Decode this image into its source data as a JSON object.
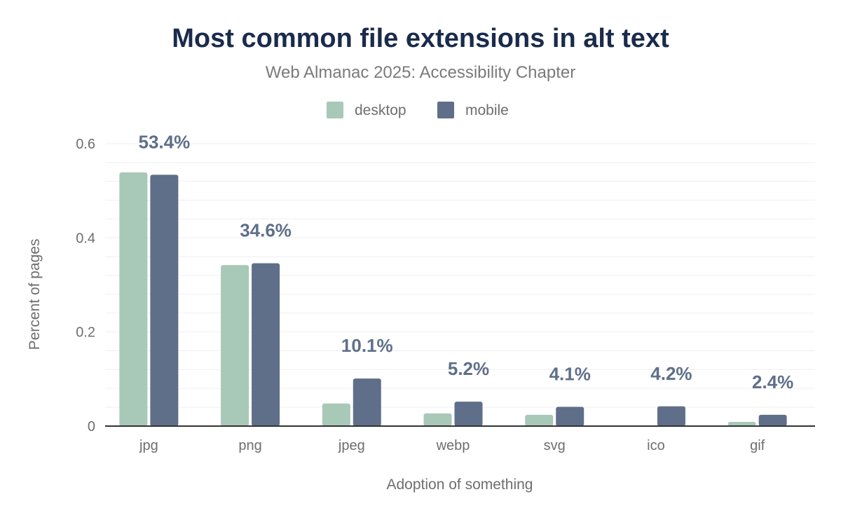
{
  "chart_data": {
    "type": "bar",
    "title": "Most common file extensions in alt text",
    "subtitle": "Web Almanac 2025: Accessibility Chapter",
    "xlabel": "Adoption of something",
    "ylabel": "Percent of pages",
    "ylim": [
      0,
      0.6
    ],
    "yticks": [
      0,
      0.2,
      0.4,
      0.6
    ],
    "ytick_labels": [
      "0",
      "0.2",
      "0.4",
      "0.6"
    ],
    "grid": true,
    "legend_placement": "top",
    "categories": [
      "jpg",
      "png",
      "jpeg",
      "webp",
      "svg",
      "ico",
      "gif"
    ],
    "series": [
      {
        "name": "desktop",
        "color": "#a8c8b8",
        "values": [
          0.539,
          0.342,
          0.048,
          0.027,
          0.024,
          0,
          0.009
        ]
      },
      {
        "name": "mobile",
        "color": "#5f6f8a",
        "values": [
          0.534,
          0.346,
          0.101,
          0.052,
          0.041,
          0.042,
          0.024
        ]
      }
    ],
    "data_labels": [
      "53.4%",
      "34.6%",
      "10.1%",
      "5.2%",
      "4.1%",
      "4.2%",
      "2.4%"
    ]
  }
}
